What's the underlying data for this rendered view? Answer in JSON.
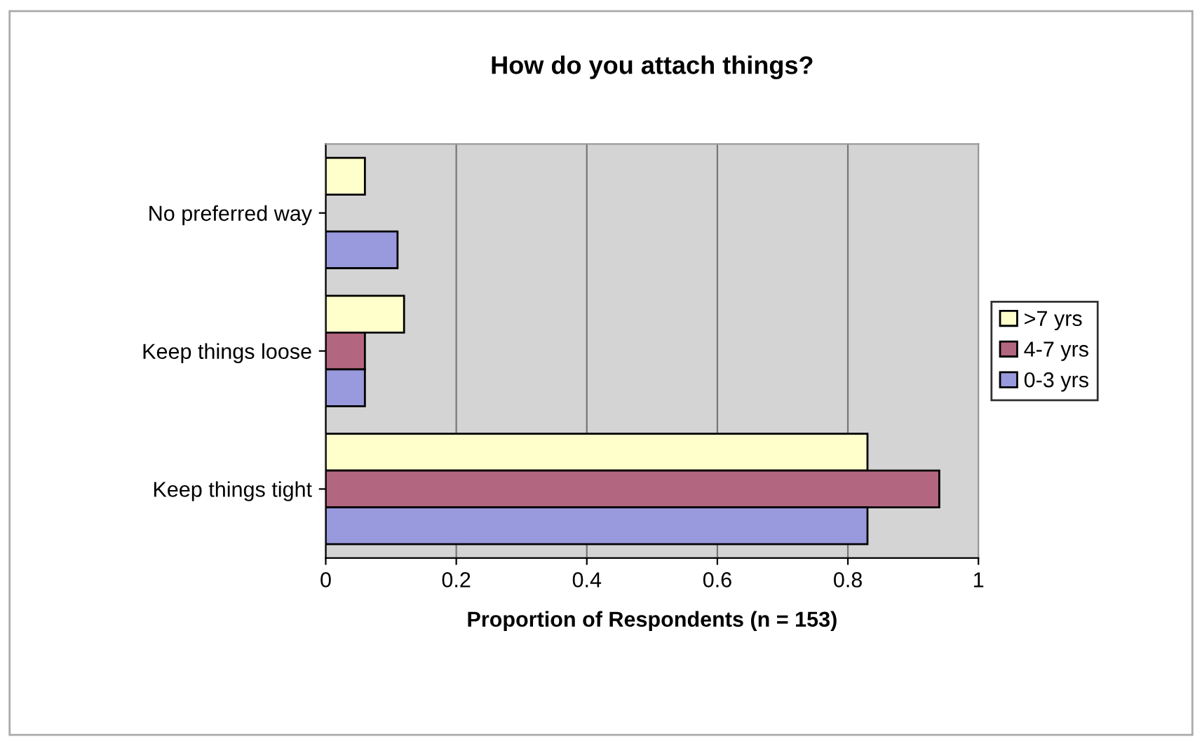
{
  "chart_data": {
    "type": "bar",
    "orientation": "horizontal",
    "title": "How do you attach things?",
    "xlabel": "Proportion of Respondents (n = 153)",
    "categories": [
      "No preferred way",
      "Keep things loose",
      "Keep things tight"
    ],
    "series": [
      {
        "name": ">7 yrs",
        "color": "#ffffcc",
        "values": [
          0.06,
          0.12,
          0.83
        ]
      },
      {
        "name": "4-7 yrs",
        "color": "#b36680",
        "values": [
          null,
          0.06,
          0.94
        ]
      },
      {
        "name": "0-3 yrs",
        "color": "#9999dd",
        "values": [
          0.11,
          0.06,
          0.83
        ]
      }
    ],
    "xlim": [
      0,
      1
    ],
    "xticks": [
      0,
      0.2,
      0.4,
      0.6,
      0.8,
      1
    ],
    "grid": "x",
    "legend": "right"
  }
}
